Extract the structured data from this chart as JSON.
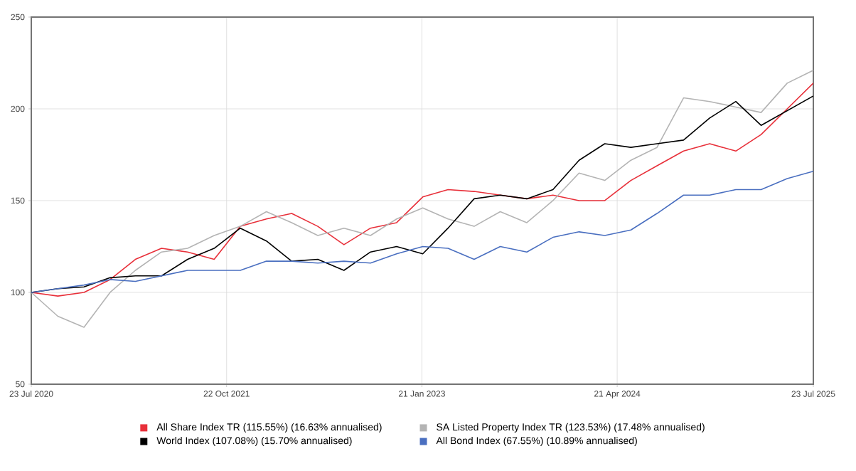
{
  "chart_data": {
    "type": "line",
    "x": [
      "2020-07-23",
      "2020-09-23",
      "2020-11-23",
      "2021-01-23",
      "2021-03-23",
      "2021-05-23",
      "2021-07-23",
      "2021-09-23",
      "2021-11-23",
      "2022-01-23",
      "2022-03-23",
      "2022-05-23",
      "2022-07-23",
      "2022-09-23",
      "2022-11-23",
      "2023-01-23",
      "2023-03-23",
      "2023-05-23",
      "2023-07-23",
      "2023-09-23",
      "2023-11-23",
      "2024-01-23",
      "2024-03-23",
      "2024-05-23",
      "2024-07-23",
      "2024-09-23",
      "2024-11-23",
      "2025-01-23",
      "2025-03-23",
      "2025-05-23",
      "2025-07-23"
    ],
    "series": [
      {
        "name": "All Share Index TR (115.55%) (16.63% annualised)",
        "color": "#e8303a",
        "values": [
          100,
          98,
          100,
          107,
          118,
          124,
          122,
          118,
          136,
          140,
          143,
          136,
          126,
          135,
          138,
          152,
          156,
          155,
          153,
          151,
          153,
          150,
          150,
          161,
          169,
          177,
          181,
          177,
          186,
          200,
          214
        ]
      },
      {
        "name": "SA Listed Property Index TR (123.53%) (17.48% annualised)",
        "color": "#b4b4b4",
        "values": [
          100,
          87,
          81,
          100,
          112,
          122,
          124,
          131,
          136,
          144,
          138,
          131,
          135,
          131,
          140,
          146,
          140,
          136,
          144,
          138,
          150,
          165,
          161,
          172,
          179,
          206,
          204,
          201,
          198,
          214,
          221
        ]
      },
      {
        "name": "World Index (107.08%) (15.70% annualised)",
        "color": "#000000",
        "values": [
          100,
          102,
          103,
          108,
          109,
          109,
          118,
          124,
          135,
          128,
          117,
          118,
          112,
          122,
          125,
          121,
          135,
          151,
          153,
          151,
          156,
          172,
          181,
          179,
          181,
          183,
          195,
          204,
          191,
          199,
          207
        ]
      },
      {
        "name": "All Bond Index (67.55%) (10.89% annualised)",
        "color": "#4a6fc0",
        "values": [
          100,
          102,
          104,
          107,
          106,
          109,
          112,
          112,
          112,
          117,
          117,
          116,
          117,
          116,
          121,
          125,
          124,
          118,
          125,
          122,
          130,
          133,
          131,
          134,
          143,
          153,
          153,
          156,
          156,
          162,
          166
        ]
      }
    ],
    "xlim": [
      "2020-07-23",
      "2025-07-23"
    ],
    "xticks": [
      {
        "value": "2020-07-23",
        "label": "23 Jul 2020"
      },
      {
        "value": "2021-10-22",
        "label": "22 Oct 2021"
      },
      {
        "value": "2023-01-21",
        "label": "21 Jan 2023"
      },
      {
        "value": "2024-04-21",
        "label": "21 Apr 2024"
      },
      {
        "value": "2025-07-23",
        "label": "23 Jul 2025"
      }
    ],
    "ylim": [
      50,
      250
    ],
    "yticks": [
      50,
      100,
      150,
      200,
      250
    ],
    "grid": true,
    "legend": "bottom",
    "marker": "none",
    "line_style": "solid"
  }
}
